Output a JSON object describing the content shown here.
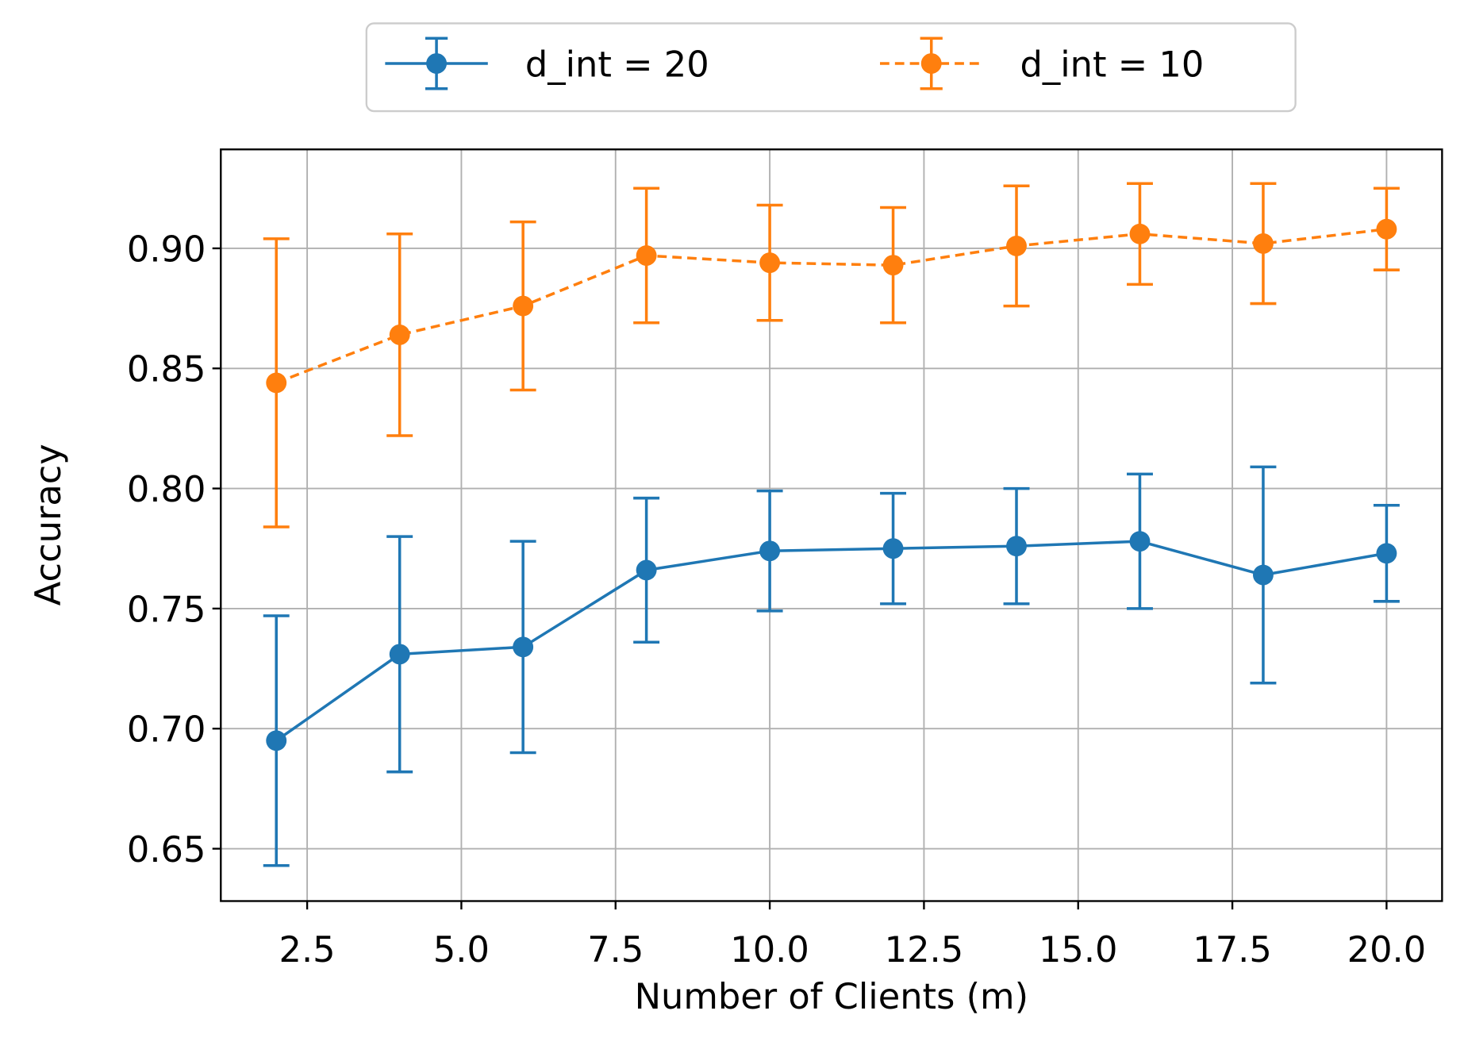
{
  "chart_data": {
    "type": "errorbar-line",
    "x_label": "Number of Clients (m)",
    "y_label": "Accuracy",
    "x": [
      2,
      4,
      6,
      8,
      10,
      12,
      14,
      16,
      18,
      20
    ],
    "series": [
      {
        "name": "d_int = 20",
        "color": "#1f77b4",
        "dash": "solid",
        "values": [
          0.695,
          0.731,
          0.734,
          0.766,
          0.774,
          0.775,
          0.776,
          0.778,
          0.764,
          0.773
        ],
        "errors": [
          0.052,
          0.049,
          0.044,
          0.03,
          0.025,
          0.023,
          0.024,
          0.028,
          0.045,
          0.02
        ]
      },
      {
        "name": "d_int = 10",
        "color": "#ff7f0e",
        "dash": "dashed",
        "values": [
          0.844,
          0.864,
          0.876,
          0.897,
          0.894,
          0.893,
          0.901,
          0.906,
          0.902,
          0.908
        ],
        "errors": [
          0.06,
          0.042,
          0.035,
          0.028,
          0.024,
          0.024,
          0.025,
          0.021,
          0.025,
          0.017
        ]
      }
    ],
    "xlim": [
      1.1,
      20.9
    ],
    "xticks": [
      2.5,
      {
        "value": 5,
        "label": "5.0"
      },
      7.5,
      {
        "value": 10,
        "label": "10.0"
      },
      12.5,
      {
        "value": 15,
        "label": "15.0"
      },
      17.5,
      {
        "value": 20,
        "label": "20.0"
      }
    ],
    "ylim": [
      0.6282,
      0.9412
    ],
    "yticks": [
      0.65,
      {
        "value": 0.7,
        "label": "0.70"
      },
      0.75,
      {
        "value": 0.8,
        "label": "0.80"
      },
      0.85,
      {
        "value": 0.9,
        "label": "0.90"
      }
    ],
    "grid": true,
    "legend": "top-center"
  }
}
